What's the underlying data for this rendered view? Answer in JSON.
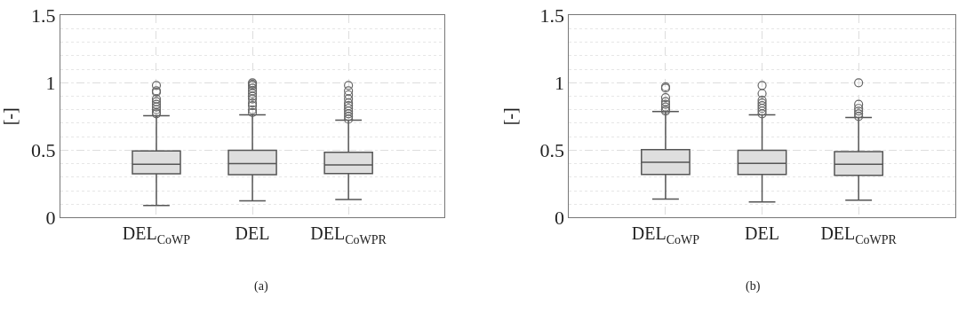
{
  "chart_data": [
    {
      "type": "box",
      "categories": [
        "DEL$_{CoWP}$",
        "DEL",
        "DEL$_{CoWPR}$"
      ],
      "ylabel": "[-]",
      "ylim": [
        0,
        1.5
      ],
      "yticks": [
        0,
        0.5,
        1,
        1.5
      ],
      "grid": true,
      "color": "#dedede",
      "annotations": [
        "(a)"
      ],
      "boxes": [
        {
          "low": 0.09,
          "q1": 0.325,
          "median": 0.395,
          "q3": 0.495,
          "high": 0.756,
          "outliers": [
            0.77,
            0.78,
            0.8,
            0.82,
            0.84,
            0.86,
            0.88,
            0.93,
            0.94,
            0.98
          ]
        },
        {
          "low": 0.124,
          "q1": 0.318,
          "median": 0.4,
          "q3": 0.5,
          "high": 0.763,
          "outliers": [
            0.78,
            0.8,
            0.83,
            0.85,
            0.88,
            0.9,
            0.92,
            0.94,
            0.96,
            0.98,
            0.99,
            1.0
          ]
        },
        {
          "low": 0.135,
          "q1": 0.327,
          "median": 0.391,
          "q3": 0.485,
          "high": 0.722,
          "outliers": [
            0.73,
            0.75,
            0.77,
            0.79,
            0.81,
            0.83,
            0.85,
            0.88,
            0.91,
            0.94,
            0.98
          ]
        }
      ]
    },
    {
      "type": "box",
      "categories": [
        "DEL$_{CoWP}$",
        "DEL",
        "DEL$_{CoWPR}$"
      ],
      "ylabel": "[-]",
      "ylim": [
        0,
        1.5
      ],
      "yticks": [
        0,
        0.5,
        1,
        1.5
      ],
      "grid": true,
      "color": "#dedede",
      "annotations": [
        "(b)"
      ],
      "boxes": [
        {
          "low": 0.138,
          "q1": 0.321,
          "median": 0.411,
          "q3": 0.505,
          "high": 0.787,
          "outliers": [
            0.79,
            0.8,
            0.82,
            0.84,
            0.86,
            0.89,
            0.96,
            0.97
          ]
        },
        {
          "low": 0.116,
          "q1": 0.321,
          "median": 0.402,
          "q3": 0.499,
          "high": 0.763,
          "outliers": [
            0.77,
            0.79,
            0.81,
            0.83,
            0.85,
            0.87,
            0.92,
            0.98
          ]
        },
        {
          "low": 0.13,
          "q1": 0.314,
          "median": 0.396,
          "q3": 0.49,
          "high": 0.743,
          "outliers": [
            0.75,
            0.77,
            0.79,
            0.81,
            0.84,
            1.0
          ]
        }
      ]
    }
  ]
}
